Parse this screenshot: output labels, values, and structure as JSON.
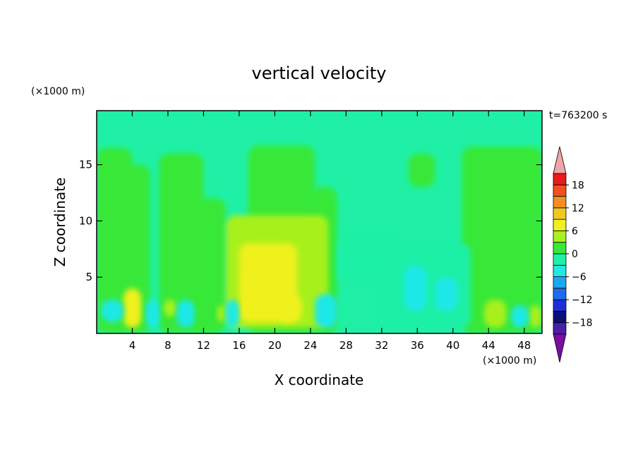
{
  "chart_data": {
    "type": "heatmap",
    "title": "vertical velocity",
    "xlabel": "X coordinate",
    "ylabel": "Z coordinate",
    "x_unit": "(×1000 m)",
    "y_unit": "(×1000 m)",
    "time_label": "t=763200 s",
    "xlim": [
      0,
      50
    ],
    "ylim": [
      0,
      19.8
    ],
    "x_ticks": [
      "4",
      "8",
      "12",
      "16",
      "20",
      "24",
      "28",
      "32",
      "36",
      "40",
      "44",
      "48"
    ],
    "y_ticks": [
      "5",
      "10",
      "15"
    ],
    "colorbar_labels": [
      "18",
      "12",
      "6",
      "0",
      "−6",
      "−12",
      "−18"
    ],
    "colorbar_levels": [
      -21,
      -18,
      -15,
      -12,
      -9,
      -6,
      -3,
      0,
      3,
      6,
      9,
      12,
      15,
      18,
      21
    ],
    "colorbar_colors": [
      "#7a0fa0",
      "#4b1fa8",
      "#0a1078",
      "#1a2fd8",
      "#1f6cf0",
      "#1fa6f0",
      "#1fe8e8",
      "#1ff0a6",
      "#37e837",
      "#a8f01f",
      "#f0f01f",
      "#f0c81f",
      "#f0901f",
      "#f0501f",
      "#e81a1a",
      "#f0a6a6"
    ],
    "field_regions": [
      {
        "x": [
          0,
          50
        ],
        "z": [
          0,
          19.8
        ],
        "value": -1
      },
      {
        "x": [
          0,
          4
        ],
        "z": [
          0,
          16.5
        ],
        "value": 1
      },
      {
        "x": [
          3,
          6
        ],
        "z": [
          0,
          15
        ],
        "value": 1
      },
      {
        "x": [
          7,
          12
        ],
        "z": [
          0,
          16
        ],
        "value": 1
      },
      {
        "x": [
          11,
          14.5
        ],
        "z": [
          0,
          12
        ],
        "value": 1
      },
      {
        "x": [
          17,
          24.5
        ],
        "z": [
          0,
          16.7
        ],
        "value": 1
      },
      {
        "x": [
          24,
          27
        ],
        "z": [
          0,
          13
        ],
        "value": 1
      },
      {
        "x": [
          35,
          38
        ],
        "z": [
          13,
          16
        ],
        "value": 1
      },
      {
        "x": [
          41,
          50
        ],
        "z": [
          0,
          16.6
        ],
        "value": 1
      },
      {
        "x": [
          14.5,
          26
        ],
        "z": [
          0.5,
          10.5
        ],
        "value": 4
      },
      {
        "x": [
          16,
          22.5
        ],
        "z": [
          1,
          8
        ],
        "value": 6
      },
      {
        "x": [
          16.5,
          19
        ],
        "z": [
          1.5,
          5.5
        ],
        "value": 8
      },
      {
        "x": [
          20.5,
          23
        ],
        "z": [
          1,
          3.5
        ],
        "value": 6
      },
      {
        "x": [
          3,
          5
        ],
        "z": [
          0.5,
          4
        ],
        "value": 7
      },
      {
        "x": [
          7.5,
          9
        ],
        "z": [
          1.5,
          3
        ],
        "value": 4
      },
      {
        "x": [
          13.5,
          14.5
        ],
        "z": [
          1,
          2.5
        ],
        "value": 4
      },
      {
        "x": [
          43.5,
          46
        ],
        "z": [
          0.5,
          3
        ],
        "value": 5
      },
      {
        "x": [
          48.5,
          50
        ],
        "z": [
          0.5,
          2.5
        ],
        "value": 5
      },
      {
        "x": [
          27,
          34
        ],
        "z": [
          4.5,
          8.5
        ],
        "value": -3
      },
      {
        "x": [
          32,
          42
        ],
        "z": [
          0.5,
          8
        ],
        "value": -3
      },
      {
        "x": [
          34.5,
          37
        ],
        "z": [
          2,
          6
        ],
        "value": -4
      },
      {
        "x": [
          38,
          40.5
        ],
        "z": [
          2,
          5
        ],
        "value": -4
      },
      {
        "x": [
          0.5,
          3
        ],
        "z": [
          1,
          3
        ],
        "value": -4
      },
      {
        "x": [
          5.5,
          7
        ],
        "z": [
          0.5,
          3
        ],
        "value": -4
      },
      {
        "x": [
          9,
          11
        ],
        "z": [
          0.5,
          3
        ],
        "value": -4
      },
      {
        "x": [
          14.5,
          16
        ],
        "z": [
          0.5,
          3
        ],
        "value": -4
      },
      {
        "x": [
          24.5,
          27
        ],
        "z": [
          0.5,
          3.5
        ],
        "value": -4
      },
      {
        "x": [
          46.5,
          48.5
        ],
        "z": [
          0.5,
          2.5
        ],
        "value": -4
      }
    ]
  }
}
